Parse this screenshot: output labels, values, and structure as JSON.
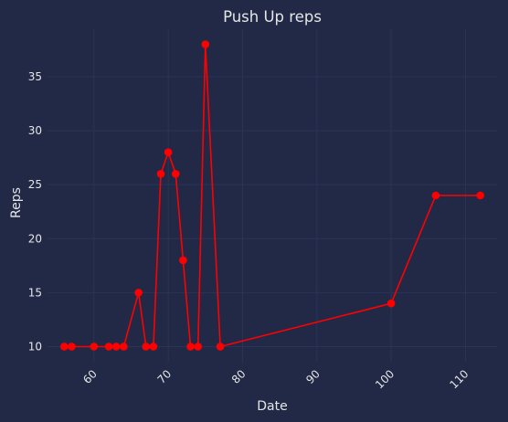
{
  "chart_data": {
    "type": "line",
    "title": "Push Up reps",
    "xlabel": "Date",
    "ylabel": "Reps",
    "xlim": [
      53.75,
      114.25
    ],
    "ylim": [
      8.6,
      39.4
    ],
    "x_ticks": [
      60,
      70,
      80,
      90,
      100,
      110
    ],
    "y_ticks": [
      10,
      15,
      20,
      25,
      30,
      35
    ],
    "grid": true,
    "series": [
      {
        "name": "Push Up reps",
        "color": "#ff0000",
        "x": [
          56,
          57,
          60,
          62,
          63,
          64,
          66,
          67,
          68,
          69,
          70,
          71,
          72,
          73,
          74,
          75,
          77,
          100,
          106,
          112
        ],
        "y": [
          10,
          10,
          10,
          10,
          10,
          10,
          15,
          10,
          10,
          26,
          28,
          26,
          18,
          10,
          10,
          38,
          10,
          14,
          24,
          24
        ]
      }
    ]
  },
  "colors": {
    "background": "#212946",
    "grid": "#2a3459",
    "text": "#e6e6e6",
    "line": "#ff0000"
  }
}
